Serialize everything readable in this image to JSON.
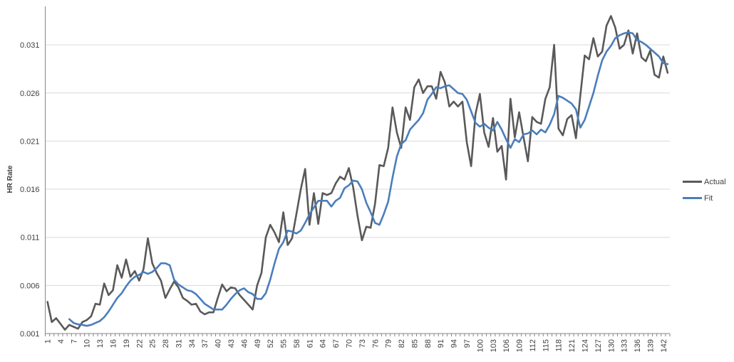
{
  "chart_data": {
    "type": "line",
    "title": "",
    "xlabel": "",
    "ylabel": "HR Rate",
    "ylim": [
      0.001,
      0.035
    ],
    "yticks": [
      "0.001",
      "0.006",
      "0.011",
      "0.016",
      "0.021",
      "0.026",
      "0.031"
    ],
    "x_start": 1,
    "x_end": 143,
    "xtick_step": 3,
    "grid": "horizontal",
    "legend_position": "right",
    "series": [
      {
        "name": "Actual",
        "color": "#595959",
        "values": [
          0.0043,
          0.0022,
          0.0026,
          0.002,
          0.0014,
          0.0019,
          0.0017,
          0.0015,
          0.0022,
          0.0024,
          0.0028,
          0.0041,
          0.004,
          0.0062,
          0.005,
          0.0055,
          0.0081,
          0.0068,
          0.0087,
          0.0069,
          0.0075,
          0.0065,
          0.0077,
          0.0109,
          0.0083,
          0.0073,
          0.0065,
          0.0047,
          0.0056,
          0.0064,
          0.0058,
          0.0047,
          0.0044,
          0.004,
          0.0041,
          0.0033,
          0.003,
          0.0032,
          0.0032,
          0.0047,
          0.0061,
          0.0054,
          0.0058,
          0.0057,
          0.005,
          0.0045,
          0.004,
          0.0035,
          0.006,
          0.0073,
          0.011,
          0.0123,
          0.0115,
          0.0105,
          0.0136,
          0.0102,
          0.0109,
          0.0134,
          0.016,
          0.0181,
          0.0123,
          0.0156,
          0.0124,
          0.0156,
          0.0154,
          0.0156,
          0.0166,
          0.0173,
          0.017,
          0.0182,
          0.0162,
          0.0132,
          0.0107,
          0.0121,
          0.012,
          0.0145,
          0.0185,
          0.0184,
          0.0203,
          0.0245,
          0.0219,
          0.0203,
          0.0245,
          0.0232,
          0.0266,
          0.0274,
          0.026,
          0.0267,
          0.0267,
          0.0254,
          0.0282,
          0.0271,
          0.0246,
          0.0251,
          0.0246,
          0.0251,
          0.0209,
          0.0184,
          0.0238,
          0.0259,
          0.0219,
          0.0204,
          0.0234,
          0.0199,
          0.0205,
          0.017,
          0.0254,
          0.0214,
          0.024,
          0.0214,
          0.0189,
          0.0235,
          0.023,
          0.0228,
          0.0254,
          0.0266,
          0.031,
          0.0223,
          0.0216,
          0.0233,
          0.0237,
          0.0213,
          0.0257,
          0.0299,
          0.0295,
          0.0317,
          0.0298,
          0.0303,
          0.033,
          0.034,
          0.0328,
          0.0306,
          0.031,
          0.0325,
          0.0301,
          0.0322,
          0.0297,
          0.0293,
          0.0304,
          0.0279,
          0.0276,
          0.0298,
          0.0281
        ]
      },
      {
        "name": "Fit",
        "color": "#4a7ebb",
        "values": [
          null,
          null,
          null,
          null,
          null,
          0.0025,
          0.0021,
          0.00195,
          0.0019,
          0.0018,
          0.0019,
          0.0021,
          0.0023,
          0.0027,
          0.0033,
          0.004,
          0.0047,
          0.0052,
          0.0059,
          0.0065,
          0.0069,
          0.0071,
          0.0074,
          0.0072,
          0.0074,
          0.0078,
          0.0083,
          0.0083,
          0.0081,
          0.0066,
          0.0061,
          0.0058,
          0.0055,
          0.0054,
          0.0051,
          0.0046,
          0.0041,
          0.0038,
          0.0035,
          0.0035,
          0.0035,
          0.004,
          0.0046,
          0.0051,
          0.0055,
          0.0057,
          0.0053,
          0.0051,
          0.0046,
          0.0046,
          0.0052,
          0.0066,
          0.0083,
          0.0098,
          0.0105,
          0.0117,
          0.0116,
          0.0114,
          0.0117,
          0.0125,
          0.0134,
          0.0141,
          0.0148,
          0.0148,
          0.0148,
          0.0142,
          0.0148,
          0.0151,
          0.0161,
          0.0164,
          0.0169,
          0.0168,
          0.016,
          0.0146,
          0.0136,
          0.0125,
          0.0123,
          0.0134,
          0.0147,
          0.0172,
          0.0194,
          0.0207,
          0.0211,
          0.0222,
          0.0227,
          0.0232,
          0.0239,
          0.0253,
          0.0259,
          0.0266,
          0.0265,
          0.0267,
          0.0268,
          0.0264,
          0.026,
          0.0259,
          0.0253,
          0.0241,
          0.0229,
          0.0225,
          0.0228,
          0.0224,
          0.0221,
          0.023,
          0.0222,
          0.0212,
          0.0203,
          0.0212,
          0.0209,
          0.0217,
          0.0218,
          0.0221,
          0.0217,
          0.0222,
          0.0219,
          0.0227,
          0.0238,
          0.0257,
          0.0255,
          0.0252,
          0.0249,
          0.0243,
          0.0224,
          0.0232,
          0.0246,
          0.026,
          0.0278,
          0.0294,
          0.0303,
          0.0309,
          0.0317,
          0.032,
          0.0322,
          0.0323,
          0.0322,
          0.0315,
          0.0313,
          0.031,
          0.0306,
          0.0302,
          0.0298,
          0.0291,
          0.029
        ]
      }
    ]
  }
}
